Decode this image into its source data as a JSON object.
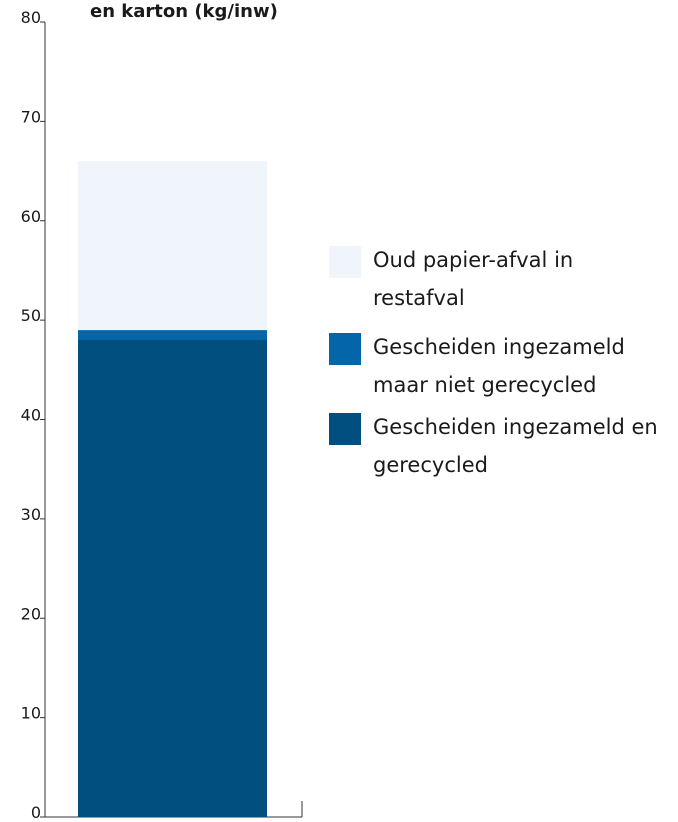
{
  "chart_data": {
    "type": "stacked-bar",
    "title": "en karton (kg/inw)",
    "categories": [
      null
    ],
    "series": [
      {
        "name": "Gescheiden ingezameld en gerecycled",
        "color": "#004f7f",
        "values": [
          48
        ]
      },
      {
        "name": "Gescheiden ingezameld maar niet gerecycled",
        "color": "#0466a8",
        "values": [
          1
        ]
      },
      {
        "name": "Oud papier-afval in restafval",
        "color": "#f0f5fc",
        "values": [
          17
        ]
      }
    ],
    "ylim": [
      0,
      80
    ],
    "yticks": [
      0,
      10,
      20,
      30,
      40,
      50,
      60,
      70,
      80
    ],
    "legend": "right"
  }
}
